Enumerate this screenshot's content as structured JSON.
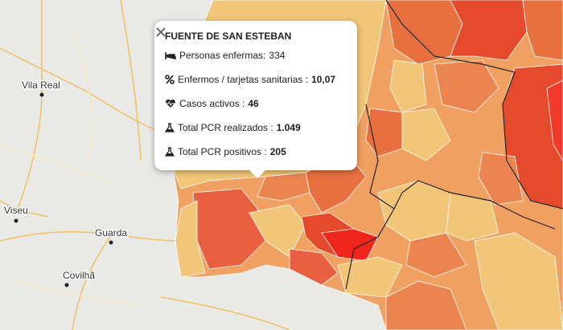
{
  "popup": {
    "title": "FUENTE DE SAN ESTEBAN",
    "rows": [
      {
        "label": "Personas enfermas:",
        "value": "334"
      },
      {
        "label": "Enfermos / tarjetas sanitarias :",
        "value": "10,07"
      },
      {
        "label": "Casos activos :",
        "value": "46"
      },
      {
        "label": "Total PCR realizados :",
        "value": "1.049"
      },
      {
        "label": "Total PCR positivos :",
        "value": "205"
      }
    ]
  },
  "map_labels": [
    "Vila Real",
    "Viseu",
    "Guarda",
    "Covilhã"
  ]
}
